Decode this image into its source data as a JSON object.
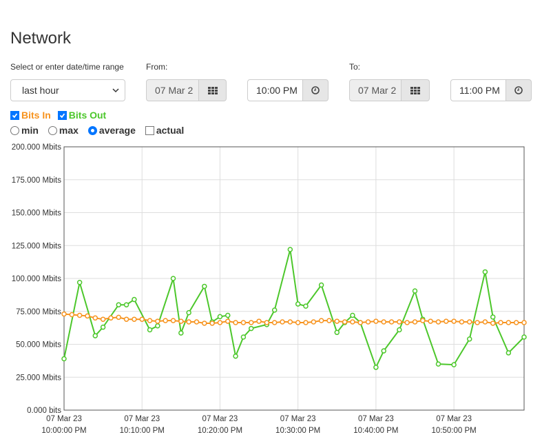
{
  "header": {
    "title": "Network"
  },
  "form": {
    "range_label": "Select or enter date/time range",
    "range_value": "last hour",
    "from_label": "From:",
    "from_date": "07 Mar 2",
    "from_time": "10:00 PM",
    "to_label": "To:",
    "to_date": "07 Mar 2",
    "to_time": "11:00 PM",
    "series_toggles": [
      {
        "checked": true
      },
      {
        "checked": true
      }
    ],
    "aggregates": [
      {
        "label": "min",
        "kind": "radio",
        "checked": false
      },
      {
        "label": "max",
        "kind": "radio",
        "checked": false
      },
      {
        "label": "average",
        "kind": "radio",
        "checked": true
      },
      {
        "label": "actual",
        "kind": "checkbox",
        "checked": false
      }
    ]
  },
  "chart_data": {
    "type": "line",
    "xlim": [
      0,
      59
    ],
    "xticks": [
      {
        "value": 0,
        "label": [
          "07 Mar 23",
          "10:00:00 PM"
        ]
      },
      {
        "value": 10,
        "label": [
          "07 Mar 23",
          "10:10:00 PM"
        ]
      },
      {
        "value": 20,
        "label": [
          "07 Mar 23",
          "10:20:00 PM"
        ]
      },
      {
        "value": 30,
        "label": [
          "07 Mar 23",
          "10:30:00 PM"
        ]
      },
      {
        "value": 40,
        "label": [
          "07 Mar 23",
          "10:40:00 PM"
        ]
      },
      {
        "value": 50,
        "label": [
          "07 Mar 23",
          "10:50:00 PM"
        ]
      }
    ],
    "ylim": [
      0,
      200
    ],
    "yticks": [
      {
        "value": 0,
        "label": "0.000 bits"
      },
      {
        "value": 25,
        "label": "25.000 Mbits"
      },
      {
        "value": 50,
        "label": "50.000 Mbits"
      },
      {
        "value": 75,
        "label": "75.000 Mbits"
      },
      {
        "value": 100,
        "label": "100.000 Mbits"
      },
      {
        "value": 125,
        "label": "125.000 Mbits"
      },
      {
        "value": 150,
        "label": "150.000 Mbits"
      },
      {
        "value": 175,
        "label": "175.000 Mbits"
      },
      {
        "value": 200,
        "label": "200.000 Mbits"
      }
    ],
    "grid": true,
    "series": [
      {
        "name": "Bits In",
        "color": "#f7931e",
        "x": [
          0,
          1,
          2,
          3,
          4,
          5,
          6,
          7,
          8,
          9,
          10,
          11,
          12,
          13,
          14,
          15,
          16,
          17,
          18,
          19,
          20,
          21,
          22,
          23,
          24,
          25,
          26,
          27,
          28,
          29,
          30,
          31,
          32,
          33,
          34,
          35,
          36,
          37,
          38,
          39,
          40,
          41,
          42,
          43,
          44,
          45,
          46,
          47,
          48,
          49,
          50,
          51,
          52,
          53,
          54,
          55,
          56,
          57,
          58,
          59
        ],
        "values": [
          73,
          72.5,
          72,
          71.5,
          70,
          69,
          70,
          70.5,
          69,
          69,
          69,
          68,
          67.5,
          68,
          68,
          67.5,
          67,
          67,
          66,
          66,
          66.5,
          67.5,
          66.5,
          66.5,
          66.5,
          67.5,
          66.5,
          66.5,
          67,
          67,
          66.5,
          66.5,
          67,
          68,
          68,
          67.5,
          67,
          67,
          66.5,
          67,
          67.5,
          67,
          67,
          67,
          66.5,
          67,
          68,
          67.5,
          67,
          67.5,
          67.5,
          67,
          67,
          66.5,
          67,
          66,
          66.5,
          66.5,
          66.5,
          66.5
        ]
      },
      {
        "name": "Bits Out",
        "color": "#4cc72b",
        "x": [
          0,
          2,
          4,
          5,
          7,
          8,
          9,
          11,
          12,
          14,
          15,
          16,
          18,
          19,
          20,
          21,
          22,
          23,
          24,
          26,
          27,
          29,
          30,
          31,
          33,
          35,
          36,
          37,
          38,
          40,
          41,
          43,
          45,
          46,
          48,
          50,
          52,
          54,
          55,
          57,
          59
        ],
        "values": [
          39,
          97,
          56.5,
          63,
          80,
          80,
          84,
          61,
          64,
          100,
          58.6,
          74,
          94,
          67,
          71,
          72,
          41,
          55.5,
          62,
          65,
          76,
          122,
          80.6,
          79,
          95,
          59,
          66.5,
          72,
          66.5,
          32.5,
          45,
          61,
          90.5,
          69,
          35,
          34.5,
          54,
          105,
          70.7,
          43.5,
          55.5
        ]
      }
    ]
  }
}
